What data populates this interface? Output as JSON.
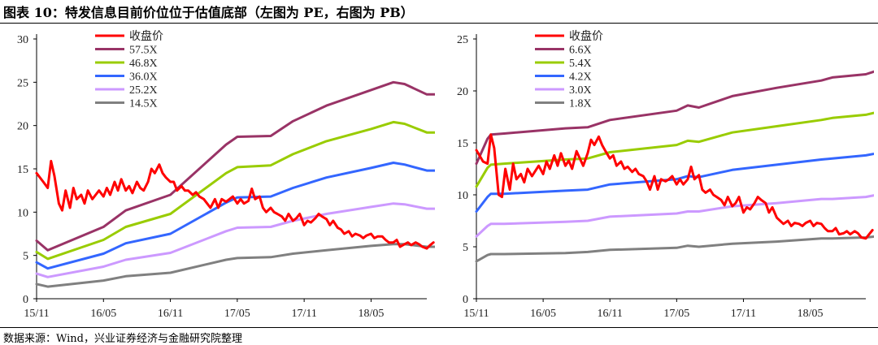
{
  "figure_title": "图表 10：特发信息目前价位位于估值底部（左图为 PE，右图为 PB）",
  "source": "数据来源：Wind，兴业证券经济与金融研究院整理",
  "chart_data": [
    {
      "type": "line",
      "ylim": [
        0,
        30
      ],
      "yticks": [
        "0",
        "5",
        "10",
        "15",
        "20",
        "25",
        "30"
      ],
      "xticks": [
        "15/11",
        "16/05",
        "16/11",
        "17/05",
        "17/11",
        "18/05"
      ],
      "x_range": [
        "2015-11",
        "2018-10"
      ],
      "legend_position": "top-left",
      "grid": false,
      "series": [
        {
          "name": "收盘价",
          "color": "#ff0000",
          "width": 3,
          "noisy": true,
          "x": [
            0,
            0.6,
            1,
            1.3,
            1.6,
            2,
            2.3,
            2.6,
            3,
            3.3,
            3.6,
            4,
            4.3,
            4.6,
            5,
            5.3,
            5.6,
            6,
            6.3,
            6.6,
            7,
            7.3,
            7.6,
            8,
            8.3,
            8.6,
            9,
            9.3,
            9.6,
            10,
            10.3,
            10.6,
            11,
            11.3,
            11.6,
            12,
            12.3,
            12.6,
            13,
            13.3,
            13.6,
            14,
            14.3,
            14.6,
            15,
            15.3,
            15.6,
            16,
            16.3,
            16.6,
            17,
            17.3,
            17.6,
            18,
            18.3,
            18.6,
            19,
            19.3,
            19.6,
            20,
            20.3,
            20.6,
            21,
            21.3,
            21.6,
            22,
            22.3,
            22.6,
            23,
            23.3,
            23.6,
            24,
            24.3,
            24.6,
            25,
            25.3,
            25.6,
            26,
            26.3,
            26.6,
            27,
            27.3,
            27.6,
            28,
            28.3,
            28.6,
            29,
            29.3,
            29.6,
            30,
            30.3,
            30.6,
            31,
            31.3,
            31.6,
            32,
            32.3,
            32.6,
            33,
            33.3,
            33.6,
            34,
            34.3,
            34.6,
            35,
            35.3,
            35.6
          ],
          "values": [
            14.5,
            13.5,
            12.8,
            15.9,
            14.2,
            11,
            10.2,
            12.5,
            10.5,
            12.8,
            11.5,
            12,
            11,
            12.5,
            11.5,
            12,
            12.5,
            11.8,
            12.8,
            12,
            13.5,
            12.5,
            13.8,
            12.5,
            13,
            12.2,
            13.5,
            12.8,
            12.5,
            13.5,
            15,
            14.5,
            15.5,
            14.5,
            14,
            13.5,
            13.5,
            12.5,
            13,
            12.5,
            12.5,
            12,
            12.3,
            11.8,
            11.5,
            11,
            10.5,
            11.5,
            10.5,
            11.5,
            11.2,
            11.5,
            11.8,
            11,
            11.5,
            11,
            11.3,
            12.7,
            11.5,
            11.8,
            10.5,
            10,
            10.5,
            10,
            9.8,
            9.5,
            9,
            9.8,
            9,
            9.3,
            9.8,
            8.5,
            9,
            8.8,
            9.3,
            9.8,
            9.5,
            9.2,
            8.5,
            9,
            8.2,
            8,
            7.5,
            7.8,
            7.2,
            7.5,
            7.3,
            7,
            7.3,
            7.5,
            7,
            7.2,
            7.2,
            6.8,
            6.5,
            6.5,
            6.8,
            6,
            6.3,
            6.5,
            6.2,
            6.5,
            6.3,
            6,
            5.8,
            6.2,
            6.5
          ]
        },
        {
          "name": "57.5X",
          "color": "#993366",
          "width": 3,
          "x": [
            0,
            1,
            6,
            8,
            12,
            17,
            18,
            21,
            23,
            26,
            30,
            32,
            33,
            35,
            36
          ],
          "values": [
            6.7,
            5.6,
            8.3,
            10.2,
            12,
            17.8,
            18.7,
            18.8,
            20.5,
            22.3,
            24.1,
            25,
            24.8,
            23.6,
            23.6
          ]
        },
        {
          "name": "46.8X",
          "color": "#99cc00",
          "width": 3,
          "x": [
            0,
            1,
            6,
            8,
            12,
            17,
            18,
            21,
            23,
            26,
            30,
            32,
            33,
            35,
            36
          ],
          "values": [
            5.4,
            4.6,
            6.8,
            8.3,
            9.8,
            14.5,
            15.2,
            15.4,
            16.7,
            18.2,
            19.6,
            20.4,
            20.2,
            19.2,
            19.2
          ]
        },
        {
          "name": "36.0X",
          "color": "#3366ff",
          "width": 3,
          "x": [
            0,
            1,
            6,
            8,
            12,
            17,
            18,
            21,
            23,
            26,
            30,
            32,
            33,
            35,
            36
          ],
          "values": [
            4.2,
            3.5,
            5.2,
            6.4,
            7.5,
            11.1,
            11.7,
            11.8,
            12.8,
            14,
            15.1,
            15.7,
            15.5,
            14.8,
            14.8
          ]
        },
        {
          "name": "25.2X",
          "color": "#cc99ff",
          "width": 3,
          "x": [
            0,
            1,
            6,
            8,
            12,
            17,
            18,
            21,
            23,
            26,
            30,
            32,
            33,
            35,
            36
          ],
          "values": [
            2.9,
            2.5,
            3.7,
            4.5,
            5.3,
            7.8,
            8.2,
            8.3,
            9,
            9.8,
            10.6,
            11,
            10.9,
            10.4,
            10.4
          ]
        },
        {
          "name": "14.5X",
          "color": "#808080",
          "width": 3,
          "x": [
            0,
            1,
            6,
            8,
            12,
            17,
            18,
            21,
            23,
            26,
            30,
            32,
            33,
            35,
            36
          ],
          "values": [
            1.7,
            1.4,
            2.1,
            2.6,
            3,
            4.5,
            4.7,
            4.8,
            5.2,
            5.6,
            6.1,
            6.3,
            6.3,
            6,
            6
          ]
        }
      ]
    },
    {
      "type": "line",
      "ylim": [
        0,
        25
      ],
      "yticks": [
        "0",
        "5",
        "10",
        "15",
        "20",
        "25"
      ],
      "xticks": [
        "15/11",
        "16/05",
        "16/11",
        "17/05",
        "17/11",
        "18/05"
      ],
      "x_range": [
        "2015-11",
        "2018-10"
      ],
      "legend_position": "top-left",
      "grid": false,
      "series": [
        {
          "name": "收盘价",
          "color": "#ff0000",
          "width": 3,
          "noisy": true,
          "x": [
            0,
            0.6,
            1,
            1.3,
            1.6,
            2,
            2.3,
            2.6,
            3,
            3.3,
            3.6,
            4,
            4.3,
            4.6,
            5,
            5.3,
            5.6,
            6,
            6.3,
            6.6,
            7,
            7.3,
            7.6,
            8,
            8.3,
            8.6,
            9,
            9.3,
            9.6,
            10,
            10.3,
            10.6,
            11,
            11.3,
            11.6,
            12,
            12.3,
            12.6,
            13,
            13.3,
            13.6,
            14,
            14.3,
            14.6,
            15,
            15.3,
            15.6,
            16,
            16.3,
            16.6,
            17,
            17.3,
            17.6,
            18,
            18.3,
            18.6,
            19,
            19.3,
            19.6,
            20,
            20.3,
            20.6,
            21,
            21.3,
            21.6,
            22,
            22.3,
            22.6,
            23,
            23.3,
            23.6,
            24,
            24.3,
            24.6,
            25,
            25.3,
            25.6,
            26,
            26.3,
            26.6,
            27,
            27.3,
            27.6,
            28,
            28.3,
            28.6,
            29,
            29.3,
            29.6,
            30,
            30.3,
            30.6,
            31,
            31.3,
            31.6,
            32,
            32.3,
            32.6,
            33,
            33.3,
            33.6,
            34,
            34.3,
            34.6,
            35,
            35.3,
            35.6
          ],
          "values": [
            14.3,
            13.2,
            13,
            15.8,
            14.5,
            10,
            9.8,
            12.5,
            10.5,
            13,
            11.5,
            12,
            11.2,
            12.5,
            11.8,
            12.3,
            12.8,
            12,
            13.2,
            12.5,
            13.8,
            12.8,
            14,
            12.8,
            13.3,
            12.5,
            14.2,
            13.5,
            12.8,
            14,
            15.3,
            14.8,
            15.6,
            14.8,
            14.2,
            13.5,
            13.8,
            12.8,
            13.2,
            12.5,
            12.7,
            12.2,
            12.5,
            12,
            11.8,
            11.3,
            10.5,
            11.8,
            10.5,
            11.5,
            11.3,
            11.5,
            11.8,
            11,
            11.5,
            11,
            11.5,
            12.7,
            11.5,
            11.9,
            10.5,
            10.2,
            10.5,
            10,
            9.8,
            9.5,
            9,
            9.8,
            8.9,
            9.2,
            9.8,
            8.3,
            8.8,
            8.6,
            9.2,
            9.8,
            9.5,
            9.2,
            8.3,
            8.8,
            7.8,
            7.5,
            7.2,
            7.5,
            7,
            7.3,
            7.2,
            7,
            7.3,
            7.5,
            7,
            7.3,
            7.2,
            6.8,
            6.5,
            6.5,
            6.8,
            6.2,
            6.3,
            6.5,
            6.2,
            6.5,
            6.3,
            5.9,
            5.8,
            6.2,
            6.6
          ]
        },
        {
          "name": "6.6X",
          "color": "#993366",
          "width": 3,
          "x": [
            0,
            1,
            1.3,
            2.5,
            8,
            10,
            12,
            18,
            19,
            20,
            23,
            27,
            31,
            32,
            35,
            37
          ],
          "values": [
            13,
            15.4,
            15.8,
            15.9,
            16.4,
            16.5,
            17.2,
            18.1,
            18.6,
            18.4,
            19.5,
            20.3,
            21,
            21.3,
            21.6,
            22.3
          ]
        },
        {
          "name": "5.4X",
          "color": "#99cc00",
          "width": 3,
          "x": [
            0,
            1,
            1.3,
            2.5,
            8,
            10,
            12,
            18,
            19,
            20,
            23,
            27,
            31,
            32,
            35,
            37
          ],
          "values": [
            10.8,
            12.6,
            12.9,
            13,
            13.4,
            13.5,
            14.1,
            14.8,
            15.2,
            15.1,
            16,
            16.6,
            17.2,
            17.4,
            17.7,
            18.2
          ]
        },
        {
          "name": "4.2X",
          "color": "#3366ff",
          "width": 3,
          "x": [
            0,
            1,
            1.3,
            2.5,
            8,
            10,
            12,
            18,
            19,
            20,
            23,
            27,
            31,
            32,
            35,
            37
          ],
          "values": [
            8.4,
            9.8,
            10.1,
            10.1,
            10.4,
            10.5,
            11,
            11.5,
            11.8,
            11.7,
            12.4,
            12.9,
            13.4,
            13.5,
            13.8,
            14.2
          ]
        },
        {
          "name": "3.0X",
          "color": "#cc99ff",
          "width": 3,
          "x": [
            0,
            1,
            1.3,
            2.5,
            8,
            10,
            12,
            18,
            19,
            20,
            23,
            27,
            31,
            32,
            35,
            37
          ],
          "values": [
            6,
            7,
            7.2,
            7.2,
            7.4,
            7.5,
            7.9,
            8.2,
            8.4,
            8.4,
            8.9,
            9.2,
            9.6,
            9.6,
            9.8,
            10.2
          ]
        },
        {
          "name": "1.8X",
          "color": "#808080",
          "width": 3,
          "x": [
            0,
            1,
            1.3,
            2.5,
            8,
            10,
            12,
            18,
            19,
            20,
            23,
            27,
            31,
            32,
            35,
            37
          ],
          "values": [
            3.6,
            4.2,
            4.3,
            4.3,
            4.4,
            4.5,
            4.7,
            4.9,
            5.1,
            5,
            5.3,
            5.5,
            5.8,
            5.8,
            5.9,
            6.1
          ]
        }
      ]
    }
  ]
}
